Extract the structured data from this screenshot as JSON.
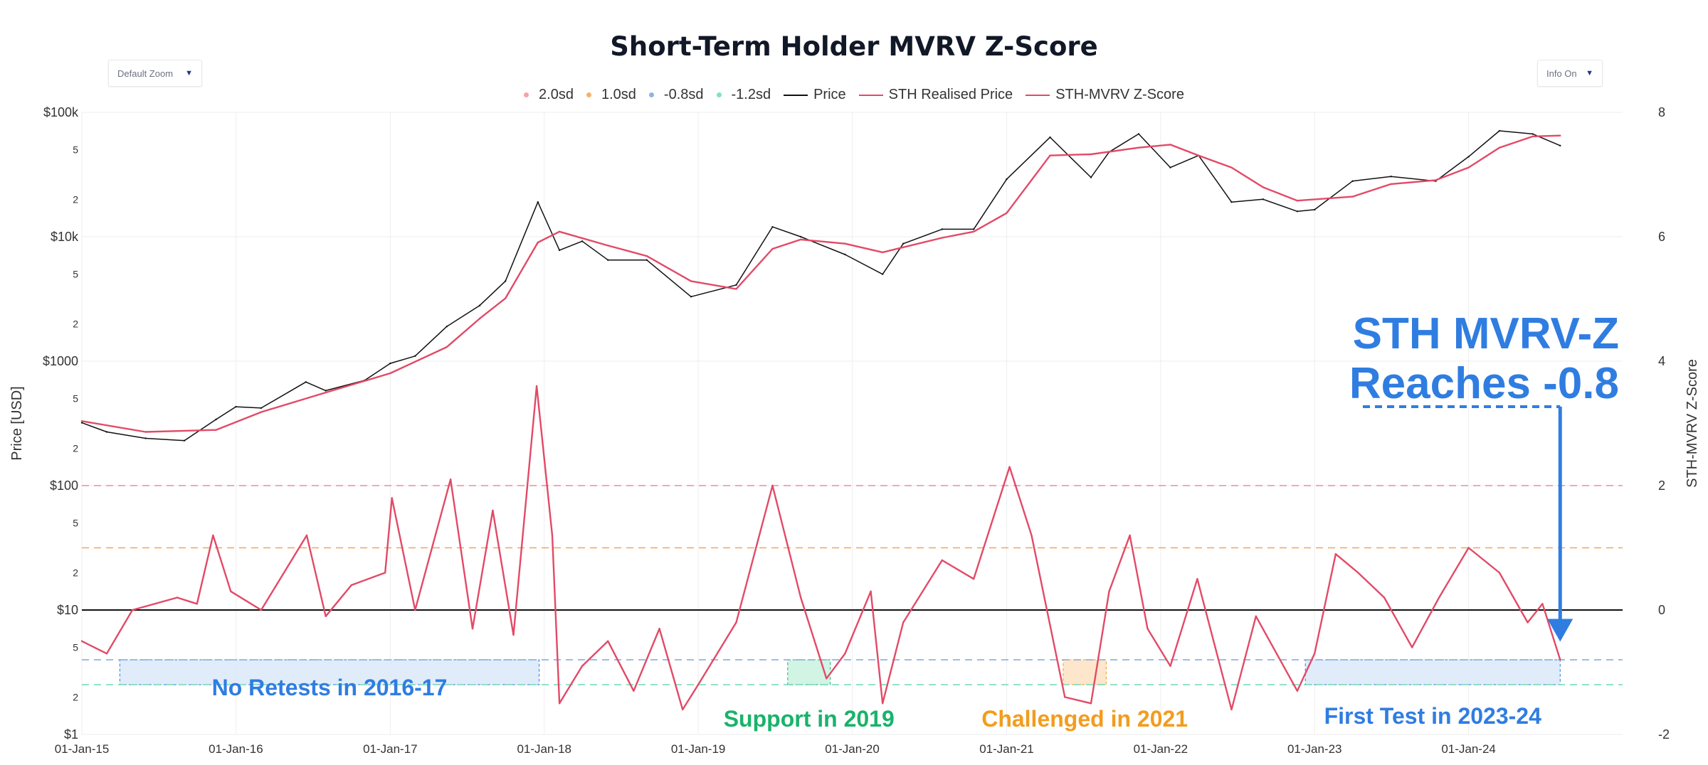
{
  "title": "Short-Term Holder MVRV Z-Score",
  "controls": {
    "zoom_label": "Default Zoom",
    "info_label": "Info On",
    "chevron": "▼"
  },
  "legend": [
    {
      "label": "2.0sd",
      "kind": "dot",
      "color": "#f4a3a8"
    },
    {
      "label": "1.0sd",
      "kind": "dot",
      "color": "#f5b26b"
    },
    {
      "label": "-0.8sd",
      "kind": "dot",
      "color": "#8db4e2"
    },
    {
      "label": "-1.2sd",
      "kind": "dot",
      "color": "#7de3c3"
    },
    {
      "label": "Price",
      "kind": "line",
      "color": "#111111"
    },
    {
      "label": "STH Realised Price",
      "kind": "line",
      "color": "#e24a67"
    },
    {
      "label": "STH-MVRV Z-Score",
      "kind": "line",
      "color": "#e24a67"
    }
  ],
  "chart_data": {
    "type": "line",
    "title": "Short-Term Holder MVRV Z-Score",
    "ylabel_left": "Price [USD]",
    "ylabel_right": "STH-MVRV Z-Score",
    "y_left_scale": "log",
    "y_left_range": [
      1,
      100000
    ],
    "y_left_major_ticks": [
      {
        "value": 1,
        "label": "$1"
      },
      {
        "value": 10,
        "label": "$10"
      },
      {
        "value": 100,
        "label": "$100"
      },
      {
        "value": 1000,
        "label": "$1000"
      },
      {
        "value": 10000,
        "label": "$10k"
      },
      {
        "value": 100000,
        "label": "$100k"
      }
    ],
    "y_left_minor_ticks": [
      {
        "value": 2,
        "label": "2"
      },
      {
        "value": 5,
        "label": "5"
      },
      {
        "value": 20,
        "label": "2"
      },
      {
        "value": 50,
        "label": "5"
      },
      {
        "value": 200,
        "label": "2"
      },
      {
        "value": 500,
        "label": "5"
      },
      {
        "value": 2000,
        "label": "2"
      },
      {
        "value": 5000,
        "label": "5"
      },
      {
        "value": 20000,
        "label": "2"
      },
      {
        "value": 50000,
        "label": "5"
      }
    ],
    "y_right_range": [
      -2,
      8
    ],
    "y_right_ticks": [
      -2,
      0,
      2,
      4,
      6,
      8
    ],
    "x_range": [
      "2015-01-01",
      "2024-12-31"
    ],
    "x_ticks": [
      {
        "date": "2015-01-01",
        "label": "01-Jan-15"
      },
      {
        "date": "2016-01-01",
        "label": "01-Jan-16"
      },
      {
        "date": "2017-01-01",
        "label": "01-Jan-17"
      },
      {
        "date": "2018-01-01",
        "label": "01-Jan-18"
      },
      {
        "date": "2019-01-01",
        "label": "01-Jan-19"
      },
      {
        "date": "2020-01-01",
        "label": "01-Jan-20"
      },
      {
        "date": "2021-01-01",
        "label": "01-Jan-21"
      },
      {
        "date": "2022-01-01",
        "label": "01-Jan-22"
      },
      {
        "date": "2023-01-01",
        "label": "01-Jan-23"
      },
      {
        "date": "2024-01-01",
        "label": "01-Jan-24"
      }
    ],
    "grid": true,
    "legend_position": "top-center",
    "reference_lines": [
      {
        "name": "2.0sd",
        "value": 2.0,
        "color": "#f08a9a",
        "style": "dashed"
      },
      {
        "name": "1.0sd",
        "value": 1.0,
        "color": "#f5a25a",
        "style": "dashed"
      },
      {
        "name": "zero",
        "value": 0,
        "color": "#111111",
        "style": "solid"
      },
      {
        "name": "-0.8sd",
        "value": -0.8,
        "color": "#7fa8de",
        "style": "dashed"
      },
      {
        "name": "-1.2sd",
        "value": -1.2,
        "color": "#6fd9b6",
        "style": "dashed"
      }
    ],
    "series": [
      {
        "name": "Price",
        "axis": "left",
        "color": "#111111",
        "x": [
          "2015-01-01",
          "2015-03-01",
          "2015-06-01",
          "2015-09-01",
          "2015-11-15",
          "2016-01-01",
          "2016-03-01",
          "2016-06-15",
          "2016-08-01",
          "2016-11-01",
          "2017-01-01",
          "2017-03-01",
          "2017-05-15",
          "2017-08-01",
          "2017-10-01",
          "2017-12-17",
          "2018-02-06",
          "2018-04-01",
          "2018-06-01",
          "2018-09-01",
          "2018-12-15",
          "2019-04-01",
          "2019-06-26",
          "2019-09-01",
          "2019-12-15",
          "2020-03-13",
          "2020-05-01",
          "2020-08-01",
          "2020-10-15",
          "2021-01-01",
          "2021-04-14",
          "2021-07-20",
          "2021-09-01",
          "2021-11-10",
          "2022-01-24",
          "2022-04-01",
          "2022-06-18",
          "2022-09-01",
          "2022-11-21",
          "2023-01-01",
          "2023-04-01",
          "2023-07-01",
          "2023-10-15",
          "2024-01-01",
          "2024-03-14",
          "2024-06-01",
          "2024-08-05"
        ],
        "y": [
          320,
          270,
          240,
          230,
          340,
          430,
          420,
          680,
          580,
          700,
          960,
          1100,
          1900,
          2800,
          4400,
          19000,
          7800,
          9200,
          6500,
          6500,
          3300,
          4100,
          12000,
          10000,
          7200,
          5000,
          8800,
          11500,
          11500,
          29000,
          63000,
          30000,
          48000,
          67000,
          36000,
          45000,
          19000,
          20000,
          16000,
          16500,
          28000,
          30500,
          28000,
          44000,
          71000,
          67000,
          54000
        ]
      },
      {
        "name": "STH Realised Price",
        "axis": "left",
        "color": "#e24a67",
        "x": [
          "2015-01-01",
          "2015-06-01",
          "2015-11-15",
          "2016-03-01",
          "2016-08-01",
          "2017-01-01",
          "2017-05-15",
          "2017-08-01",
          "2017-10-01",
          "2017-12-17",
          "2018-02-06",
          "2018-06-01",
          "2018-09-01",
          "2018-12-15",
          "2019-04-01",
          "2019-06-26",
          "2019-09-01",
          "2019-12-15",
          "2020-03-13",
          "2020-08-01",
          "2020-10-15",
          "2021-01-01",
          "2021-04-14",
          "2021-07-20",
          "2021-11-10",
          "2022-01-24",
          "2022-04-01",
          "2022-06-18",
          "2022-09-01",
          "2022-11-21",
          "2023-04-01",
          "2023-07-01",
          "2023-10-15",
          "2024-01-01",
          "2024-03-14",
          "2024-06-01",
          "2024-08-05"
        ],
        "y": [
          330,
          270,
          280,
          390,
          560,
          800,
          1300,
          2200,
          3200,
          9000,
          11000,
          8500,
          7000,
          4400,
          3800,
          8000,
          9500,
          8800,
          7500,
          9800,
          11000,
          15500,
          45000,
          46000,
          52000,
          55000,
          45000,
          36000,
          25000,
          19500,
          21000,
          26500,
          28500,
          36000,
          52000,
          64000,
          65000
        ]
      },
      {
        "name": "STH-MVRV Z-Score",
        "axis": "right",
        "color": "#e24a67",
        "x": [
          "2015-01-01",
          "2015-03-01",
          "2015-05-01",
          "2015-08-15",
          "2015-10-01",
          "2015-11-08",
          "2015-12-20",
          "2016-03-01",
          "2016-06-17",
          "2016-08-01",
          "2016-10-01",
          "2016-12-20",
          "2017-01-05",
          "2017-03-01",
          "2017-05-24",
          "2017-07-15",
          "2017-09-01",
          "2017-10-20",
          "2017-12-14",
          "2018-01-20",
          "2018-02-06",
          "2018-04-01",
          "2018-06-01",
          "2018-08-01",
          "2018-10-01",
          "2018-11-25",
          "2019-01-01",
          "2019-04-01",
          "2019-06-26",
          "2019-09-01",
          "2019-11-01",
          "2019-12-15",
          "2020-02-14",
          "2020-03-13",
          "2020-05-01",
          "2020-08-01",
          "2020-10-15",
          "2021-01-08",
          "2021-03-01",
          "2021-05-19",
          "2021-07-20",
          "2021-09-01",
          "2021-10-20",
          "2021-12-01",
          "2022-01-24",
          "2022-03-29",
          "2022-06-18",
          "2022-08-15",
          "2022-11-21",
          "2023-01-01",
          "2023-02-20",
          "2023-04-14",
          "2023-06-15",
          "2023-08-20",
          "2023-10-23",
          "2024-01-01",
          "2024-03-14",
          "2024-05-20",
          "2024-06-24",
          "2024-08-05"
        ],
        "y": [
          -0.5,
          -0.7,
          0.0,
          0.2,
          0.1,
          1.2,
          0.3,
          0.0,
          1.2,
          -0.1,
          0.4,
          0.6,
          1.8,
          0.0,
          2.1,
          -0.3,
          1.6,
          -0.4,
          3.6,
          1.2,
          -1.5,
          -0.9,
          -0.5,
          -1.3,
          -0.3,
          -1.6,
          -1.2,
          -0.2,
          2.0,
          0.2,
          -1.1,
          -0.7,
          0.3,
          -1.5,
          -0.2,
          0.8,
          0.5,
          2.3,
          1.2,
          -1.4,
          -1.5,
          0.3,
          1.2,
          -0.3,
          -0.9,
          0.5,
          -1.6,
          -0.1,
          -1.3,
          -0.7,
          0.9,
          0.6,
          0.2,
          -0.6,
          0.2,
          1.0,
          0.6,
          -0.2,
          0.1,
          -0.8
        ]
      }
    ],
    "regions": [
      {
        "label": "No Retests in 2016-17",
        "x": [
          "2015-04-01",
          "2017-12-20"
        ],
        "y": [
          -1.2,
          -0.8
        ],
        "color": "#dbe9f8",
        "text_color": "#2f7de1"
      },
      {
        "label": "Support in 2019",
        "x": [
          "2019-08-01",
          "2019-11-10"
        ],
        "y": [
          -1.2,
          -0.8
        ],
        "color": "#c9f2df",
        "text_color": "#19b36b"
      },
      {
        "label": "Challenged in 2021",
        "x": [
          "2021-05-15",
          "2021-08-25"
        ],
        "y": [
          -1.2,
          -0.8
        ],
        "color": "#fde2c2",
        "text_color": "#f39c1e"
      },
      {
        "label": "First Test in 2023-24",
        "x": [
          "2022-12-10",
          "2024-08-05"
        ],
        "y": [
          -1.2,
          -0.8
        ],
        "color": "#dbe9f8",
        "text_color": "#2f7de1"
      }
    ],
    "annotations": [
      {
        "text": [
          "STH MVRV-Z",
          "Reaches -0.8"
        ],
        "color": "#2f7de1",
        "arrow_target": {
          "x": "2024-08-05",
          "y": -0.6
        }
      }
    ]
  }
}
